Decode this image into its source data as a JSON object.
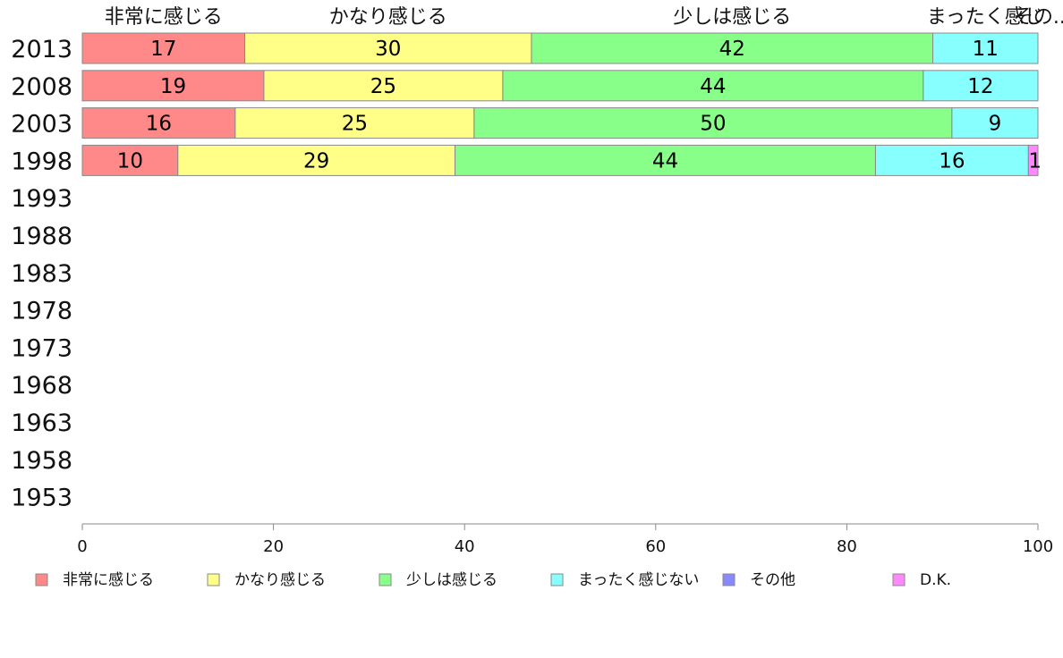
{
  "chart_data": {
    "type": "bar",
    "orientation": "horizontal",
    "stacked": true,
    "years": [
      "2013",
      "2008",
      "2003",
      "1998",
      "1993",
      "1988",
      "1983",
      "1978",
      "1973",
      "1968",
      "1963",
      "1958",
      "1953"
    ],
    "top_labels": [
      "非常に感じる",
      "かなり感じる",
      "少しは感じる",
      "まったく感じ",
      "その..."
    ],
    "series": [
      {
        "name": "非常に感じる",
        "color": "#ff8888",
        "values": [
          17,
          19,
          16,
          10,
          null,
          null,
          null,
          null,
          null,
          null,
          null,
          null,
          null
        ]
      },
      {
        "name": "かなり感じる",
        "color": "#ffff88",
        "values": [
          30,
          25,
          25,
          29,
          null,
          null,
          null,
          null,
          null,
          null,
          null,
          null,
          null
        ]
      },
      {
        "name": "少しは感じる",
        "color": "#88ff88",
        "values": [
          42,
          44,
          50,
          44,
          null,
          null,
          null,
          null,
          null,
          null,
          null,
          null,
          null
        ]
      },
      {
        "name": "まったく感じない",
        "color": "#88ffff",
        "values": [
          11,
          12,
          9,
          16,
          null,
          null,
          null,
          null,
          null,
          null,
          null,
          null,
          null
        ]
      },
      {
        "name": "その他",
        "color": "#8888ff",
        "values": [
          0,
          0,
          0,
          0,
          null,
          null,
          null,
          null,
          null,
          null,
          null,
          null,
          null
        ]
      },
      {
        "name": "D.K.",
        "color": "#ff88ff",
        "values": [
          0,
          0,
          0,
          1,
          null,
          null,
          null,
          null,
          null,
          null,
          null,
          null,
          null
        ]
      }
    ],
    "x_ticks": [
      "0",
      "20",
      "40",
      "60",
      "80",
      "100"
    ],
    "xlim": [
      0,
      100
    ],
    "grid": false,
    "legend_position": "bottom"
  }
}
